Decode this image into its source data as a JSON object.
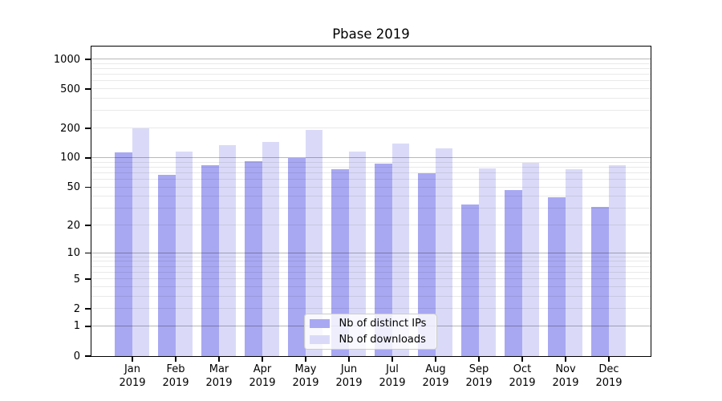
{
  "title": "Pbase 2019",
  "colors": {
    "ips": "#a8a8f2",
    "downloads": "#dadaf8",
    "grid_major": "#b8b8b8",
    "grid_minor": "#ebebeb",
    "axis": "#000000",
    "legend_border": "#cccccc"
  },
  "legend": {
    "items": [
      {
        "label": "Nb of distinct IPs"
      },
      {
        "label": "Nb of downloads"
      }
    ]
  },
  "chart_data": {
    "type": "bar",
    "title": "Pbase 2019",
    "y_scale": "log10(value+1)",
    "grid": true,
    "legend_position": "lower-center",
    "year": "2019",
    "categories": [
      "Jan",
      "Feb",
      "Mar",
      "Apr",
      "May",
      "Jun",
      "Jul",
      "Aug",
      "Sep",
      "Oct",
      "Nov",
      "Dec"
    ],
    "series": [
      {
        "name": "Nb of distinct IPs",
        "color": "#a8a8f2",
        "values": [
          113,
          66,
          84,
          92,
          99,
          76,
          86,
          69,
          33,
          46,
          39,
          31
        ]
      },
      {
        "name": "Nb of downloads",
        "color": "#dadaf8",
        "values": [
          200,
          115,
          133,
          143,
          192,
          116,
          140,
          125,
          78,
          88,
          76,
          83
        ]
      }
    ],
    "yticks": [
      0,
      1,
      2,
      5,
      10,
      20,
      50,
      100,
      200,
      500,
      1000
    ],
    "ylim": [
      0,
      1340
    ],
    "xlabel": "",
    "ylabel": ""
  }
}
